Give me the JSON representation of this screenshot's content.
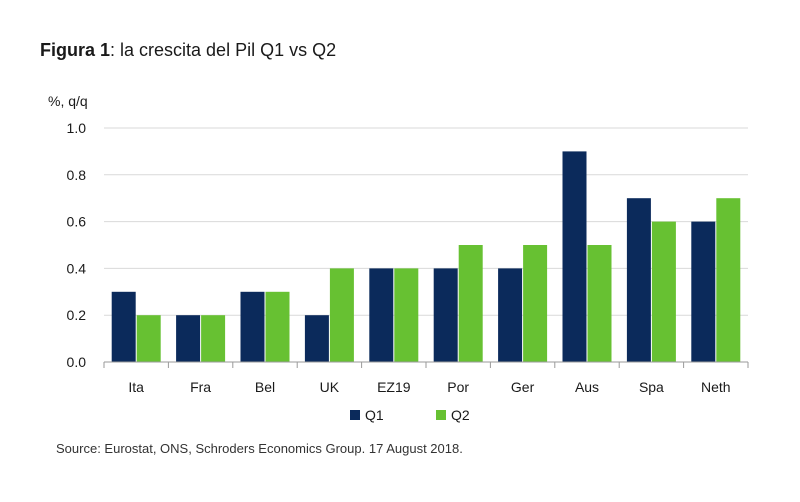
{
  "header": {
    "title_bold": "Figura 1",
    "title_rest": ": la crescita del Pil Q1 vs Q2"
  },
  "footer": {
    "source": "Source: Eurostat, ONS, Schroders Economics Group. 17 August 2018."
  },
  "chart_data": {
    "type": "bar",
    "ylabel": "%, q/q",
    "xlabel": "",
    "ylim": [
      0,
      1.0
    ],
    "yticks": [
      "0.0",
      "0.2",
      "0.4",
      "0.6",
      "0.8",
      "1.0"
    ],
    "grid": true,
    "legend_position": "bottom-center",
    "categories": [
      "Ita",
      "Fra",
      "Bel",
      "UK",
      "EZ19",
      "Por",
      "Ger",
      "Aus",
      "Spa",
      "Neth"
    ],
    "series": [
      {
        "name": "Q1",
        "color": "#0b2a5b",
        "values": [
          0.3,
          0.2,
          0.3,
          0.2,
          0.4,
          0.4,
          0.4,
          0.9,
          0.7,
          0.6
        ]
      },
      {
        "name": "Q2",
        "color": "#67c132",
        "values": [
          0.2,
          0.2,
          0.3,
          0.4,
          0.4,
          0.5,
          0.5,
          0.5,
          0.6,
          0.7
        ]
      }
    ]
  }
}
